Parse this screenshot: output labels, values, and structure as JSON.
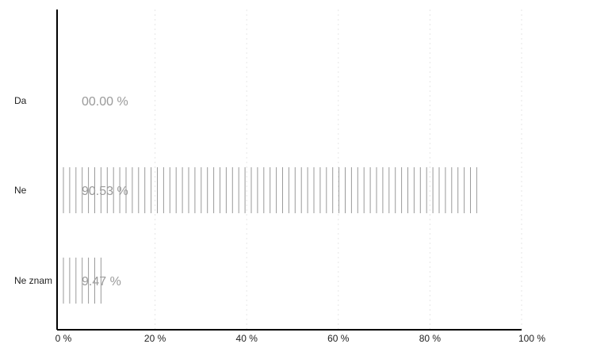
{
  "chart_data": {
    "type": "bar",
    "orientation": "horizontal",
    "categories": [
      "Da",
      "Ne",
      "Ne znam"
    ],
    "values": [
      0.0,
      90.53,
      9.47
    ],
    "value_labels": [
      "00.00 %",
      "90.53 %",
      "9.47 %"
    ],
    "x_ticks": [
      0,
      20,
      40,
      60,
      80,
      100
    ],
    "x_tick_labels": [
      "0 %",
      "20 %",
      "40 %",
      "60 %",
      "80 %",
      "100 %"
    ],
    "xlim": [
      0,
      100
    ],
    "grid": "vertical dotted",
    "bar_fill": "vertical hatch lines",
    "colors": {
      "axis": "#000000",
      "bar_lines": "#9a9a9a",
      "grid": "#e6e6e6",
      "value_label": "#9a9a9a"
    }
  }
}
